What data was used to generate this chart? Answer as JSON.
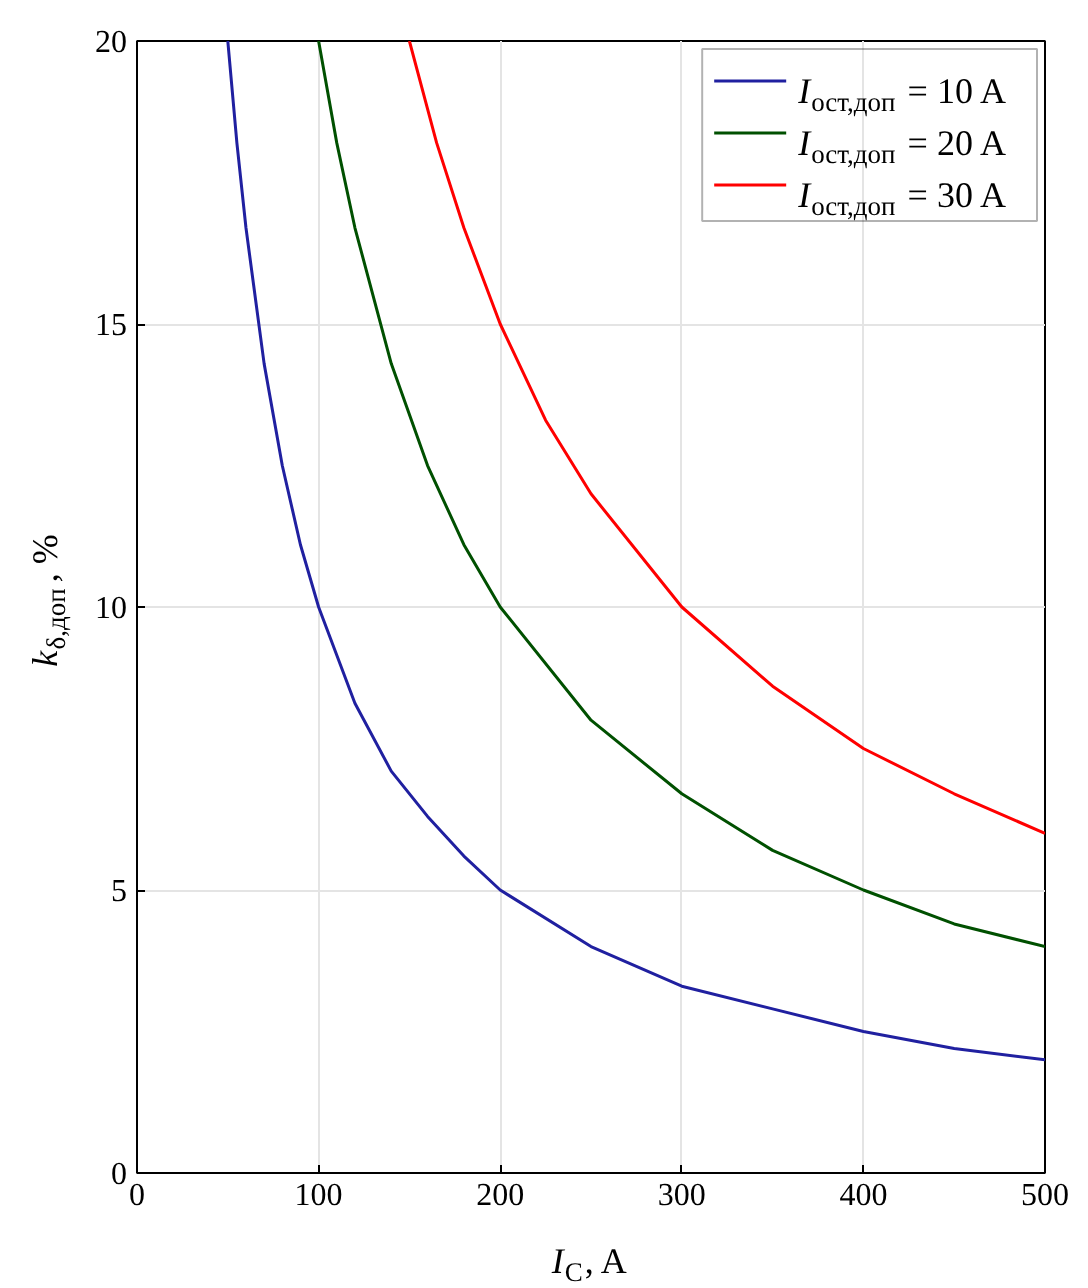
{
  "chart_data": {
    "type": "line",
    "xlabel": "I$_{C}$, A",
    "ylabel": "k$_{δ,доп}$, %",
    "xlim": [
      0,
      500
    ],
    "ylim": [
      0,
      20
    ],
    "xticks": [
      0,
      100,
      200,
      300,
      400,
      500
    ],
    "yticks": [
      0,
      5,
      10,
      15,
      20
    ],
    "grid": true,
    "legend": "top right",
    "line_style": "solid",
    "marker": "none",
    "series": [
      {
        "name": "I$_{ост,доп}$ = 10 A",
        "color": "#2020a0",
        "x": [
          50,
          55,
          60,
          70,
          80,
          90,
          100,
          120,
          140,
          160,
          180,
          200,
          250,
          300,
          350,
          400,
          450,
          500
        ],
        "values": [
          20,
          18.2,
          16.7,
          14.3,
          12.5,
          11.1,
          10,
          8.3,
          7.1,
          6.3,
          5.6,
          5,
          4,
          3.3,
          2.9,
          2.5,
          2.2,
          2
        ]
      },
      {
        "name": "I$_{ост,доп}$ = 20 A",
        "color": "#005000",
        "x": [
          100,
          110,
          120,
          140,
          160,
          180,
          200,
          250,
          300,
          350,
          400,
          450,
          500
        ],
        "values": [
          20,
          18.2,
          16.7,
          14.3,
          12.5,
          11.1,
          10,
          8,
          6.7,
          5.7,
          5,
          4.4,
          4
        ]
      },
      {
        "name": "I$_{ост,доп}$ = 30 A",
        "color": "#ff0000",
        "x": [
          150,
          165,
          180,
          200,
          225,
          250,
          300,
          350,
          400,
          450,
          500
        ],
        "values": [
          20,
          18.2,
          16.7,
          15,
          13.3,
          12,
          10,
          8.6,
          7.5,
          6.7,
          6
        ]
      }
    ]
  }
}
